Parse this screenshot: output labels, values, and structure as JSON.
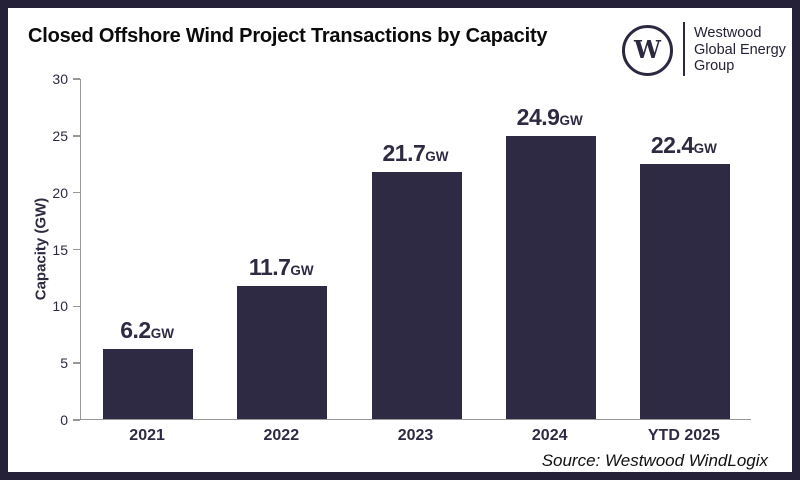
{
  "header": {
    "title": "Closed Offshore Wind Project Transactions by Capacity"
  },
  "logo": {
    "mark": "W",
    "lines": [
      "Westwood",
      "Global Energy",
      "Group"
    ]
  },
  "source": "Source: Westwood WindLogix",
  "colors": {
    "frame_border": "#252138",
    "bar": "#2e2a44",
    "axis": "#979797",
    "label_navy": "#2d2a42",
    "title_black": "#0b0b0b"
  },
  "chart_data": {
    "type": "bar",
    "title": "Closed Offshore Wind Project Transactions by Capacity",
    "categories": [
      "2021",
      "2022",
      "2023",
      "2024",
      "YTD 2025"
    ],
    "values": [
      6.2,
      11.7,
      21.7,
      24.9,
      22.4
    ],
    "value_labels": [
      "6.2",
      "11.7",
      "21.7",
      "24.9",
      "22.4"
    ],
    "unit": "GW",
    "xlabel": "",
    "ylabel": "Capacity (GW)",
    "ylim": [
      0,
      30
    ],
    "yticks": [
      0,
      5,
      10,
      15,
      20,
      25,
      30
    ],
    "grid": false,
    "legend": false,
    "bar_color": "#2e2a44"
  }
}
